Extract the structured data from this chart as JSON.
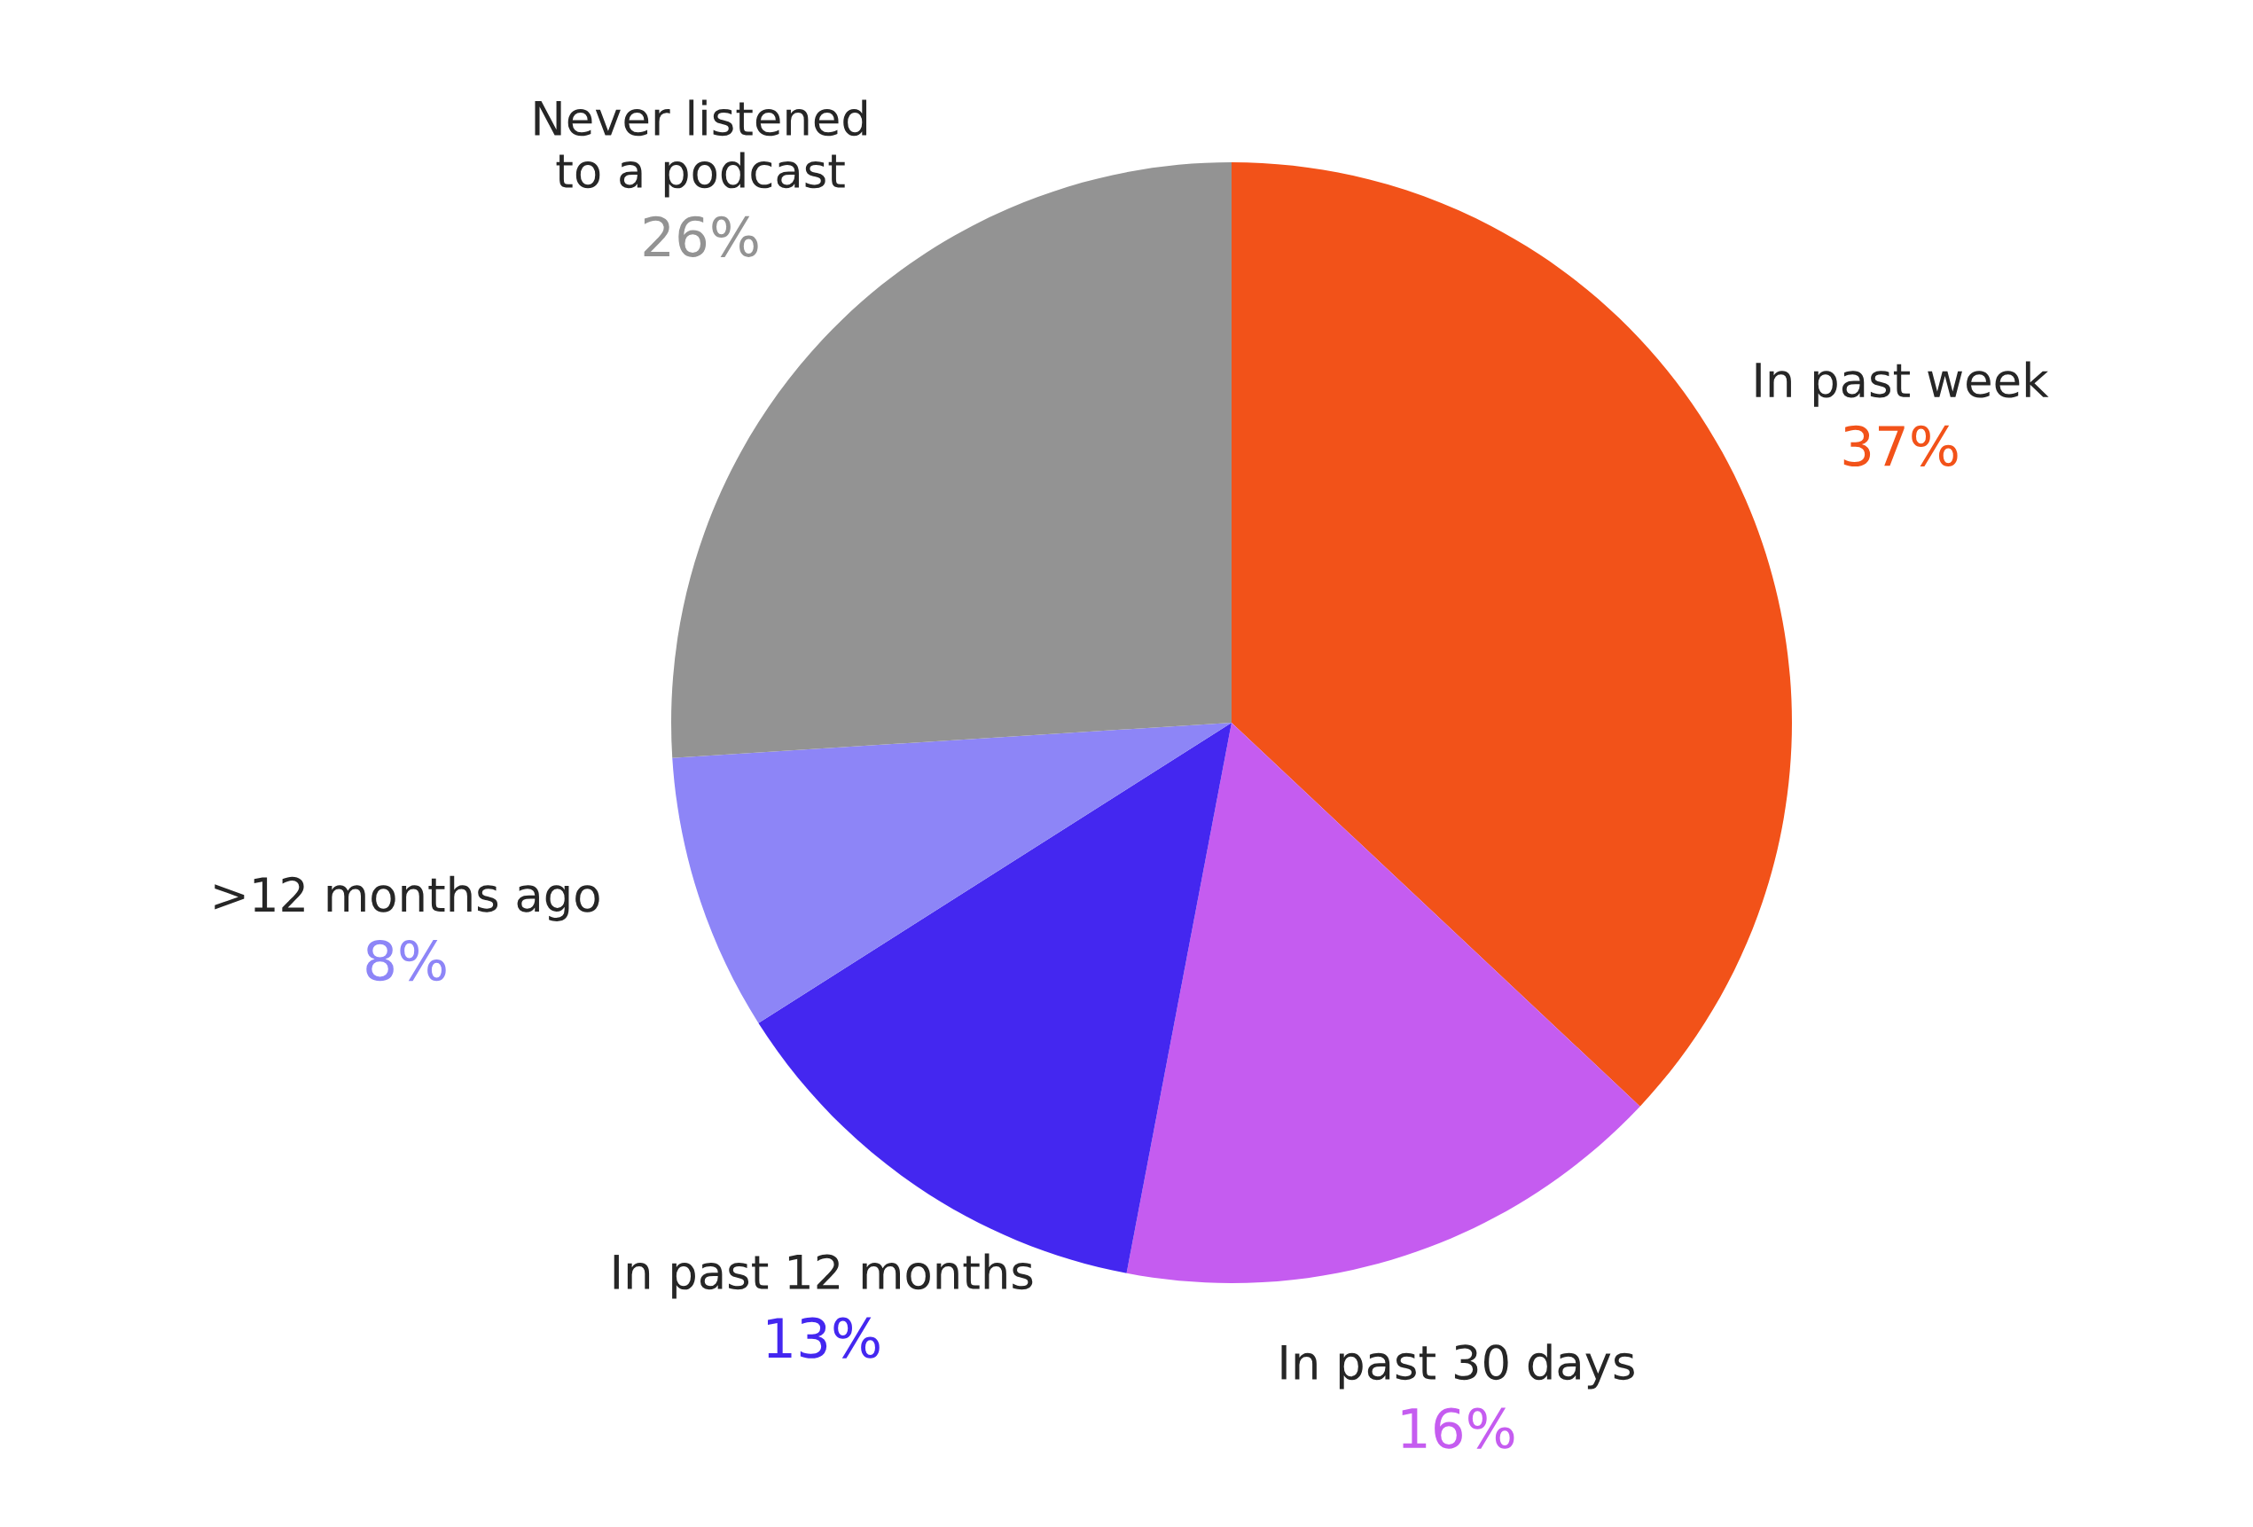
{
  "chart_data": {
    "type": "pie",
    "categories": [
      "In past week",
      "In past 30 days",
      "In past 12 months",
      ">12 months ago",
      "Never listened\nto a podcast"
    ],
    "values": [
      37,
      16,
      13,
      8,
      26
    ],
    "colors": [
      "#f25219",
      "#c55cf0",
      "#4427f0",
      "#8d85f7",
      "#939393"
    ],
    "value_labels": [
      "37%",
      "16%",
      "13%",
      "8%",
      "26%"
    ]
  }
}
